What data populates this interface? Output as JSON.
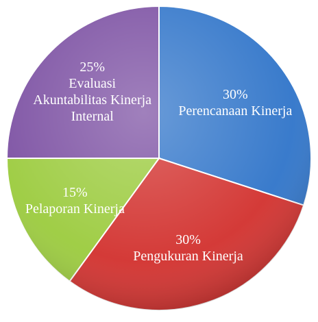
{
  "chart_data": {
    "type": "pie",
    "categories": [
      "Perencanaan Kinerja",
      "Pengukuran Kinerja",
      "Pelaporan Kinerja",
      "Evaluasi Akuntabilitas Kinerja Internal"
    ],
    "values": [
      30,
      30,
      15,
      25
    ],
    "value_labels": [
      "30%",
      "30%",
      "15%",
      "25%"
    ],
    "colors": [
      "#2f74c9",
      "#d2302d",
      "#9bcb3d",
      "#7b4fa2"
    ]
  }
}
